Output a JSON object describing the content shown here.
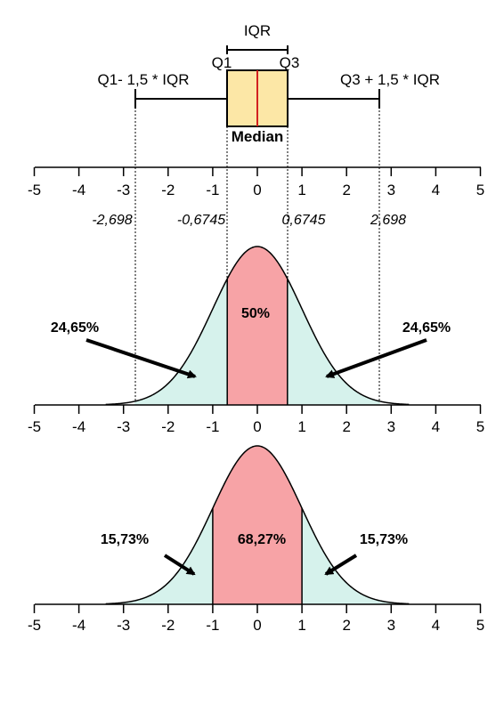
{
  "diagram": {
    "iqr_label": "IQR",
    "q1_label": "Q1",
    "q3_label": "Q3",
    "lower_whisker_label": "Q1- 1,5 * IQR",
    "upper_whisker_label": "Q3 + 1,5 * IQR",
    "median_label": "Median",
    "axis_ticks": [
      "-5",
      "-4",
      "-3",
      "-2",
      "-1",
      "0",
      "1",
      "2",
      "3",
      "4",
      "5"
    ],
    "quartile_values": {
      "lower_fence": "-2,698",
      "q1": "-0,6745",
      "q3": "0,6745",
      "upper_fence": "2,698"
    },
    "panel_iqr": {
      "center_pct": "50%",
      "left_pct": "24,65%",
      "right_pct": "24,65%"
    },
    "panel_sigma": {
      "center_pct": "68,27%",
      "left_pct": "15,73%",
      "right_pct": "15,73%"
    },
    "colors": {
      "box_fill": "#fce7a6",
      "median_line": "#d22020",
      "center_fill": "#f7a3a6",
      "tail_fill": "#d6f2ec"
    }
  }
}
